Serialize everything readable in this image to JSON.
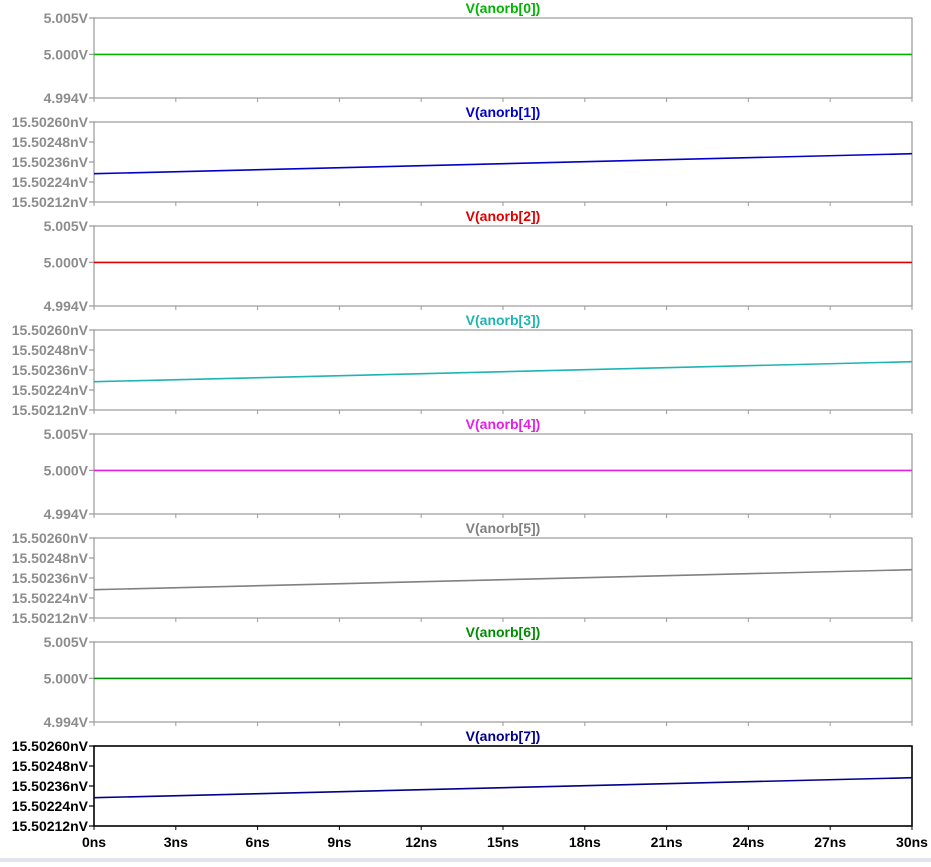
{
  "chart_data": {
    "type": "line",
    "x_unit": "ns",
    "x_ticks": [
      "0ns",
      "3ns",
      "6ns",
      "9ns",
      "12ns",
      "15ns",
      "18ns",
      "21ns",
      "24ns",
      "27ns",
      "30ns"
    ],
    "xlim": [
      0,
      30
    ],
    "grid": false,
    "panes": [
      {
        "title": "V(anorb[0])",
        "color": "#00b400",
        "y_unit": "V",
        "ylim": [
          4.994,
          5.005
        ],
        "y_ticks": [
          {
            "value": 5.005,
            "label": "5.005V"
          },
          {
            "value": 5.0,
            "label": "5.000V"
          },
          {
            "value": 4.994,
            "label": "4.994V"
          }
        ],
        "x": [
          0,
          30
        ],
        "y": [
          5.0,
          5.0
        ]
      },
      {
        "title": "V(anorb[1])",
        "color": "#0000c8",
        "y_unit": "nV",
        "ylim": [
          15.50212,
          15.5026
        ],
        "y_ticks": [
          {
            "value": 15.5026,
            "label": "15.50260nV"
          },
          {
            "value": 15.50248,
            "label": "15.50248nV"
          },
          {
            "value": 15.50236,
            "label": "15.50236nV"
          },
          {
            "value": 15.50224,
            "label": "15.50224nV"
          },
          {
            "value": 15.50212,
            "label": "15.50212nV"
          }
        ],
        "x": [
          0,
          30
        ],
        "y": [
          15.50229,
          15.50241
        ]
      },
      {
        "title": "V(anorb[2])",
        "color": "#e00000",
        "y_unit": "V",
        "ylim": [
          4.994,
          5.005
        ],
        "y_ticks": [
          {
            "value": 5.005,
            "label": "5.005V"
          },
          {
            "value": 5.0,
            "label": "5.000V"
          },
          {
            "value": 4.994,
            "label": "4.994V"
          }
        ],
        "x": [
          0,
          30
        ],
        "y": [
          5.0,
          5.0
        ]
      },
      {
        "title": "V(anorb[3])",
        "color": "#1eb4b4",
        "y_unit": "nV",
        "ylim": [
          15.50212,
          15.5026
        ],
        "y_ticks": [
          {
            "value": 15.5026,
            "label": "15.50260nV"
          },
          {
            "value": 15.50248,
            "label": "15.50248nV"
          },
          {
            "value": 15.50236,
            "label": "15.50236nV"
          },
          {
            "value": 15.50224,
            "label": "15.50224nV"
          },
          {
            "value": 15.50212,
            "label": "15.50212nV"
          }
        ],
        "x": [
          0,
          30
        ],
        "y": [
          15.50229,
          15.50241
        ]
      },
      {
        "title": "V(anorb[4])",
        "color": "#e61ee6",
        "y_unit": "V",
        "ylim": [
          4.994,
          5.005
        ],
        "y_ticks": [
          {
            "value": 5.005,
            "label": "5.005V"
          },
          {
            "value": 5.0,
            "label": "5.000V"
          },
          {
            "value": 4.994,
            "label": "4.994V"
          }
        ],
        "x": [
          0,
          30
        ],
        "y": [
          5.0,
          5.0
        ]
      },
      {
        "title": "V(anorb[5])",
        "color": "#808080",
        "y_unit": "nV",
        "ylim": [
          15.50212,
          15.5026
        ],
        "y_ticks": [
          {
            "value": 15.5026,
            "label": "15.50260nV"
          },
          {
            "value": 15.50248,
            "label": "15.50248nV"
          },
          {
            "value": 15.50236,
            "label": "15.50236nV"
          },
          {
            "value": 15.50224,
            "label": "15.50224nV"
          },
          {
            "value": 15.50212,
            "label": "15.50212nV"
          }
        ],
        "x": [
          0,
          30
        ],
        "y": [
          15.50229,
          15.50241
        ]
      },
      {
        "title": "V(anorb[6])",
        "color": "#008c00",
        "y_unit": "V",
        "ylim": [
          4.994,
          5.005
        ],
        "y_ticks": [
          {
            "value": 5.005,
            "label": "5.005V"
          },
          {
            "value": 5.0,
            "label": "5.000V"
          },
          {
            "value": 4.994,
            "label": "4.994V"
          }
        ],
        "x": [
          0,
          30
        ],
        "y": [
          5.0,
          5.0
        ]
      },
      {
        "title": "V(anorb[7])",
        "color": "#00008c",
        "y_unit": "nV",
        "ylim": [
          15.50212,
          15.5026
        ],
        "y_ticks": [
          {
            "value": 15.5026,
            "label": "15.50260nV"
          },
          {
            "value": 15.50248,
            "label": "15.50248nV"
          },
          {
            "value": 15.50236,
            "label": "15.50236nV"
          },
          {
            "value": 15.50224,
            "label": "15.50224nV"
          },
          {
            "value": 15.50212,
            "label": "15.50212nV"
          }
        ],
        "x": [
          0,
          30
        ],
        "y": [
          15.50229,
          15.50241
        ]
      }
    ]
  },
  "colors": {
    "axis_text_gray": "#8c8c8c",
    "frame_gray": "#999999",
    "active_frame": "#000000",
    "active_text": "#000000",
    "background": "#ffffff"
  },
  "active_pane": 7
}
